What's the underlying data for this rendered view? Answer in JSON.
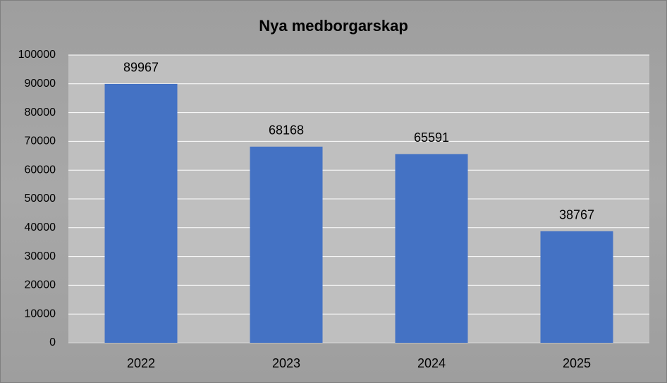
{
  "chart_data": {
    "type": "bar",
    "title": "Nya medborgarskap",
    "categories": [
      "2022",
      "2023",
      "2024",
      "2025"
    ],
    "values": [
      89967,
      68168,
      65591,
      38767
    ],
    "color": "#4472c4",
    "ylim": [
      0,
      100000
    ],
    "yticks": [
      0,
      10000,
      20000,
      30000,
      40000,
      50000,
      60000,
      70000,
      80000,
      90000,
      100000
    ],
    "grid": true
  }
}
